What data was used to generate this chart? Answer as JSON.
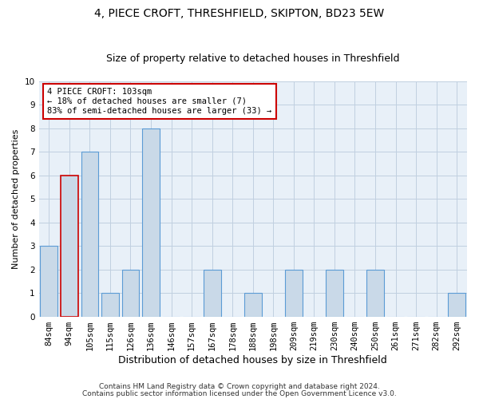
{
  "title": "4, PIECE CROFT, THRESHFIELD, SKIPTON, BD23 5EW",
  "subtitle": "Size of property relative to detached houses in Threshfield",
  "xlabel": "Distribution of detached houses by size in Threshfield",
  "ylabel": "Number of detached properties",
  "categories": [
    "84sqm",
    "94sqm",
    "105sqm",
    "115sqm",
    "126sqm",
    "136sqm",
    "146sqm",
    "157sqm",
    "167sqm",
    "178sqm",
    "188sqm",
    "198sqm",
    "209sqm",
    "219sqm",
    "230sqm",
    "240sqm",
    "250sqm",
    "261sqm",
    "271sqm",
    "282sqm",
    "292sqm"
  ],
  "values": [
    3,
    6,
    7,
    1,
    2,
    8,
    0,
    0,
    2,
    0,
    1,
    0,
    2,
    0,
    2,
    0,
    2,
    0,
    0,
    0,
    1
  ],
  "bar_color": "#c9d9e8",
  "bar_edge_color": "#5b9bd5",
  "highlight_bar_index": 1,
  "highlight_edge_color": "#cc0000",
  "annotation_text": "4 PIECE CROFT: 103sqm\n← 18% of detached houses are smaller (7)\n83% of semi-detached houses are larger (33) →",
  "annotation_box_color": "#ffffff",
  "annotation_box_edge_color": "#cc0000",
  "ylim": [
    0,
    10
  ],
  "yticks": [
    0,
    1,
    2,
    3,
    4,
    5,
    6,
    7,
    8,
    9,
    10
  ],
  "footer1": "Contains HM Land Registry data © Crown copyright and database right 2024.",
  "footer2": "Contains public sector information licensed under the Open Government Licence v3.0.",
  "bg_color": "#ffffff",
  "plot_bg_color": "#e8f0f8",
  "grid_color": "#c0cfe0",
  "title_fontsize": 10,
  "subtitle_fontsize": 9,
  "ylabel_fontsize": 8,
  "xlabel_fontsize": 9,
  "tick_fontsize": 7.5,
  "footer_fontsize": 6.5
}
